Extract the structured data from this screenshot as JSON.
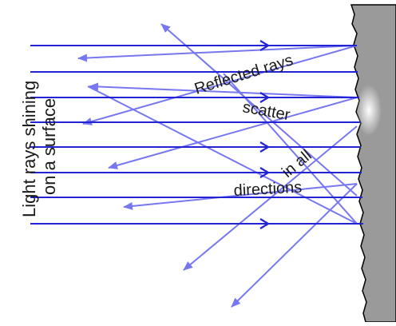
{
  "labels": {
    "incident": [
      "Light rays shining",
      "on a surface"
    ],
    "reflected": "Reflected rays",
    "scatter": "scatter",
    "in_all": "in all",
    "directions": "directions"
  },
  "colors": {
    "incident_ray": "#2323d6",
    "reflected_ray": "#7777f0",
    "surface_fill": "#9a9a9a",
    "surface_edge": "#000000",
    "glow": "#ffffff"
  }
}
